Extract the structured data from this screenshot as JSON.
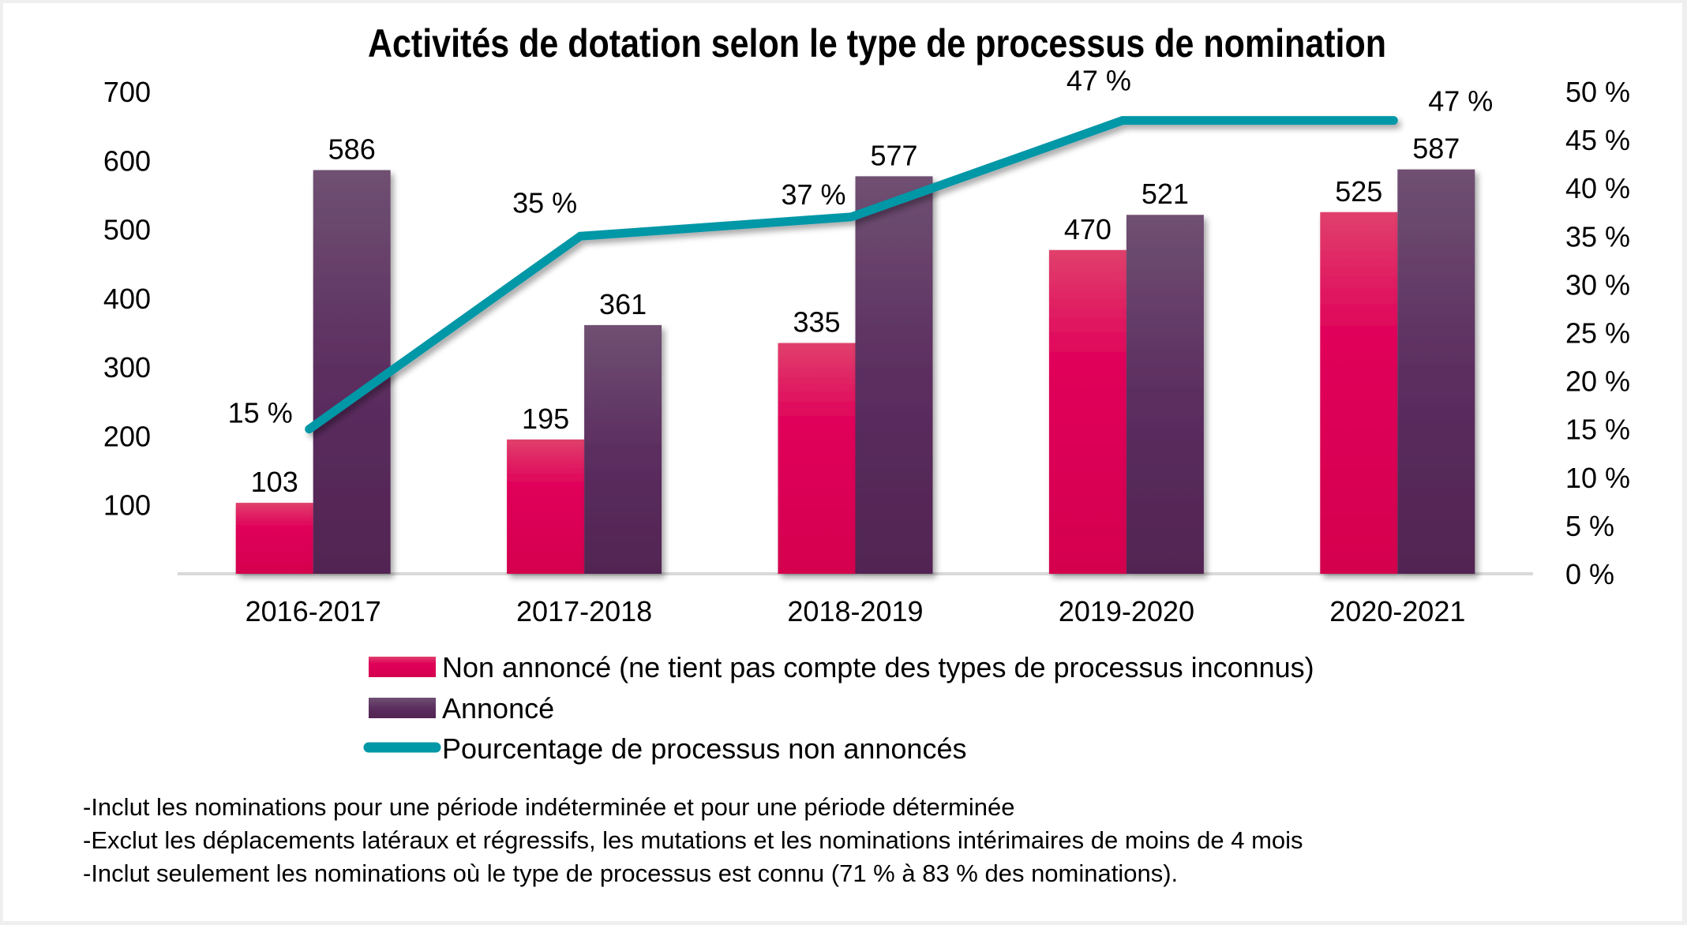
{
  "chart_data": {
    "type": "bar",
    "title": "Activités de dotation selon le type de processus de nomination",
    "categories": [
      "2016-2017",
      "2017-2018",
      "2018-2019",
      "2019-2020",
      "2020-2021"
    ],
    "series": [
      {
        "name": "Non annoncé (ne tient pas compte des types de processus inconnus)",
        "type": "bar",
        "axis": "left",
        "color": "#d9004c",
        "values": [
          103,
          195,
          335,
          470,
          525
        ],
        "labels": [
          "103",
          "195",
          "335",
          "470",
          "525"
        ]
      },
      {
        "name": "Annoncé",
        "type": "bar",
        "axis": "left",
        "color": "#5a2a5e",
        "values": [
          586,
          361,
          577,
          521,
          587
        ],
        "labels": [
          "586",
          "361",
          "577",
          "521",
          "587"
        ]
      },
      {
        "name": "Pourcentage de processus non annoncés",
        "type": "line",
        "axis": "right",
        "color": "#0097a7",
        "values": [
          15,
          35,
          37,
          47,
          47
        ],
        "labels": [
          "15 %",
          "35 %",
          "37 %",
          "47 %",
          "47 %"
        ]
      }
    ],
    "y_left": {
      "min": 0,
      "max": 700,
      "ticks": [
        "100",
        "200",
        "300",
        "400",
        "500",
        "600",
        "700"
      ],
      "tick_values": [
        100,
        200,
        300,
        400,
        500,
        600,
        700
      ]
    },
    "y_right": {
      "min": 0,
      "max": 50,
      "ticks": [
        "0 %",
        "5 %",
        "10 %",
        "15 %",
        "20 %",
        "25 %",
        "30 %",
        "35 %",
        "40 %",
        "45 %",
        "50 %"
      ],
      "tick_values": [
        0,
        5,
        10,
        15,
        20,
        25,
        30,
        35,
        40,
        45,
        50
      ]
    },
    "xlabel": "",
    "ylabel": "",
    "grid": false,
    "legend_position": "bottom-center"
  },
  "notes": [
    "-Inclut les nominations pour une période indéterminée et pour une période déterminée",
    "-Exclut les déplacements latéraux et régressifs, les mutations et les nominations intérimaires de moins de 4 mois",
    "-Inclut seulement les nominations où le type de processus est connu (71 % à 83 % des nominations)."
  ]
}
